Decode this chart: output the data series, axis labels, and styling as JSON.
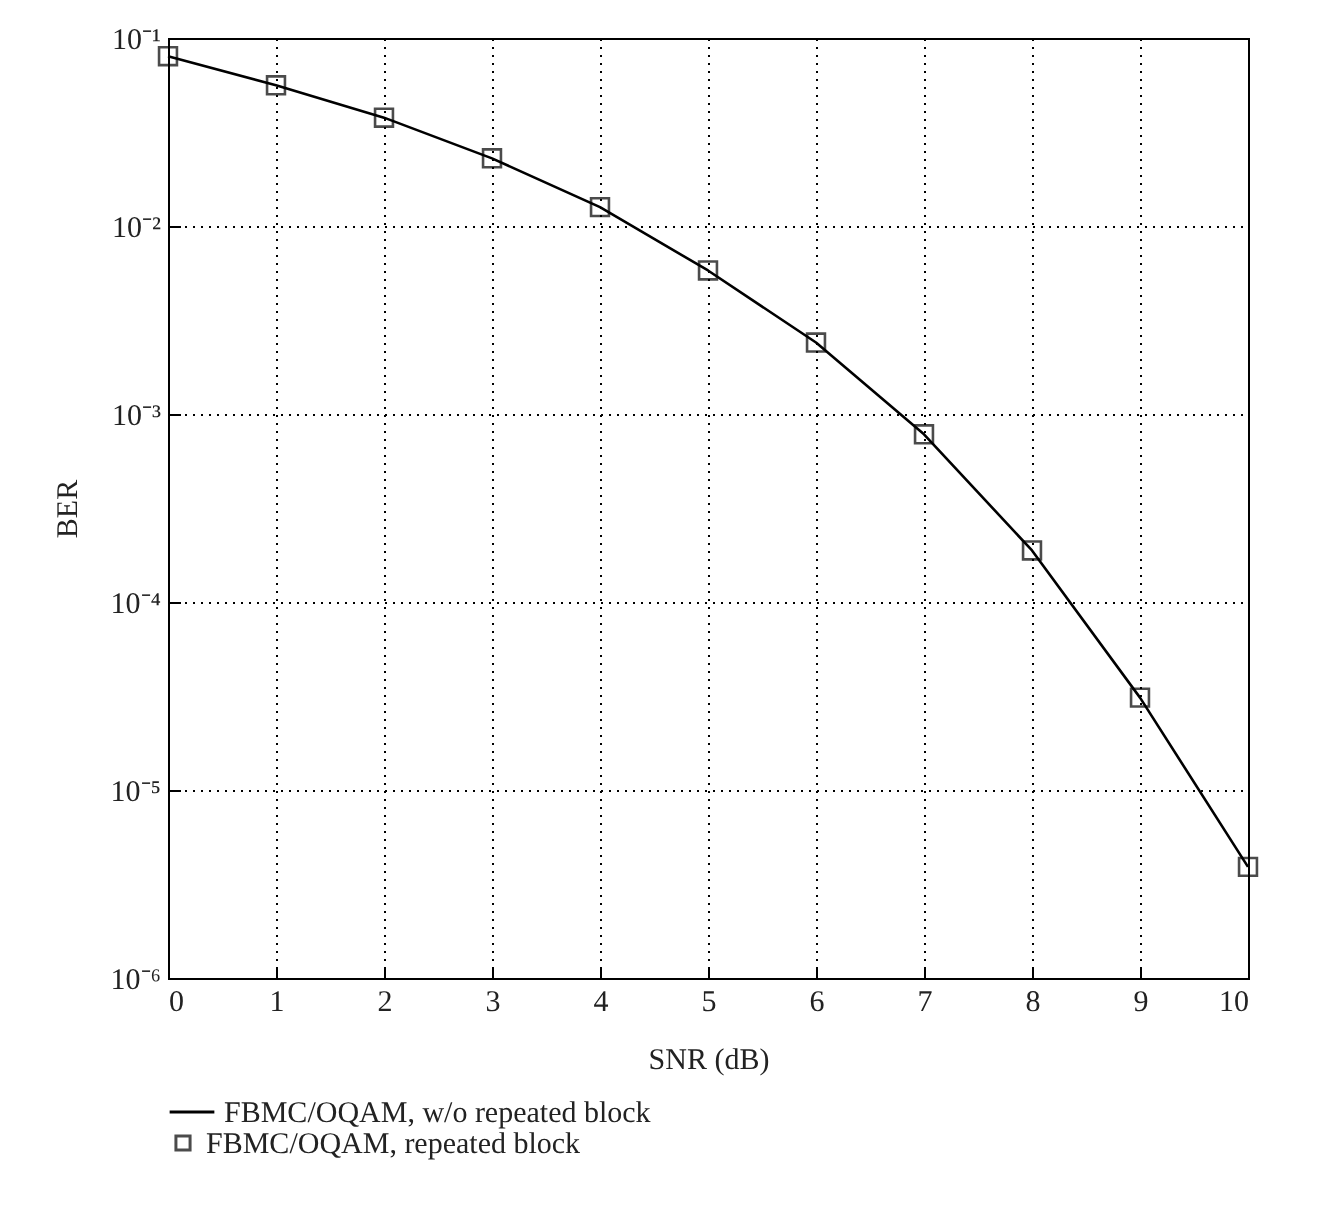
{
  "chart_data": {
    "type": "line",
    "xlabel": "SNR (dB)",
    "ylabel": "BER",
    "x": [
      0,
      1,
      2,
      3,
      4,
      5,
      6,
      7,
      8,
      9,
      10
    ],
    "series": [
      {
        "name": "FBMC/OQAM, w/o repeated block",
        "color": "#000000",
        "marker": "none",
        "values": [
          0.08,
          0.056,
          0.0377,
          0.0229,
          0.0126,
          0.0058,
          0.0024,
          0.00078,
          0.000188,
          3.1e-05,
          3.9e-06
        ]
      },
      {
        "name": "FBMC/OQAM, repeated block",
        "color": "#000000",
        "type": "scatter",
        "marker": "square",
        "values": [
          0.08,
          0.056,
          0.0377,
          0.0229,
          0.0126,
          0.0058,
          0.0024,
          0.00078,
          0.000188,
          3.1e-05,
          3.9e-06
        ]
      }
    ],
    "xlim": [
      0,
      10
    ],
    "xticks": [
      0,
      1,
      2,
      3,
      4,
      5,
      6,
      7,
      8,
      9,
      10
    ],
    "ylim": [
      1e-06,
      0.1
    ],
    "yticks": [
      {
        "value": 1e-06,
        "label": "10⁻⁶"
      },
      {
        "value": 1e-05,
        "label": "10⁻⁵"
      },
      {
        "value": 0.0001,
        "label": "10⁻⁴"
      },
      {
        "value": 0.001,
        "label": "10⁻³"
      },
      {
        "value": 0.01,
        "label": "10⁻²"
      },
      {
        "value": 0.1,
        "label": "10⁻¹"
      }
    ],
    "log": "y",
    "grid": true,
    "legend": "bottom"
  }
}
